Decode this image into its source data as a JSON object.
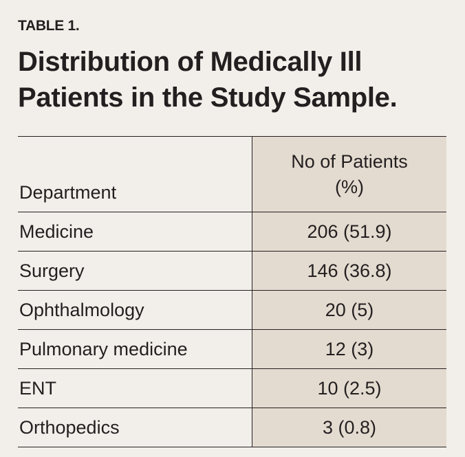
{
  "table_label": "TABLE 1.",
  "title": "Distribution of Medically Ill Patients in the Study Sample.",
  "columns": {
    "department": "Department",
    "patients_line1": "No of Patients",
    "patients_line2": "(%)"
  },
  "rows": [
    {
      "department": "Medicine",
      "patients": "206 (51.9)"
    },
    {
      "department": "Surgery",
      "patients": "146 (36.8)"
    },
    {
      "department": "Ophthalmology",
      "patients": "20 (5)"
    },
    {
      "department": "Pulmonary medicine",
      "patients": "12 (3)"
    },
    {
      "department": "ENT",
      "patients": "10 (2.5)"
    },
    {
      "department": "Orthopedics",
      "patients": "3 (0.8)"
    }
  ],
  "colors": {
    "background": "#f2efea",
    "shaded_column": "#e4dbd0",
    "text": "#231f20"
  }
}
